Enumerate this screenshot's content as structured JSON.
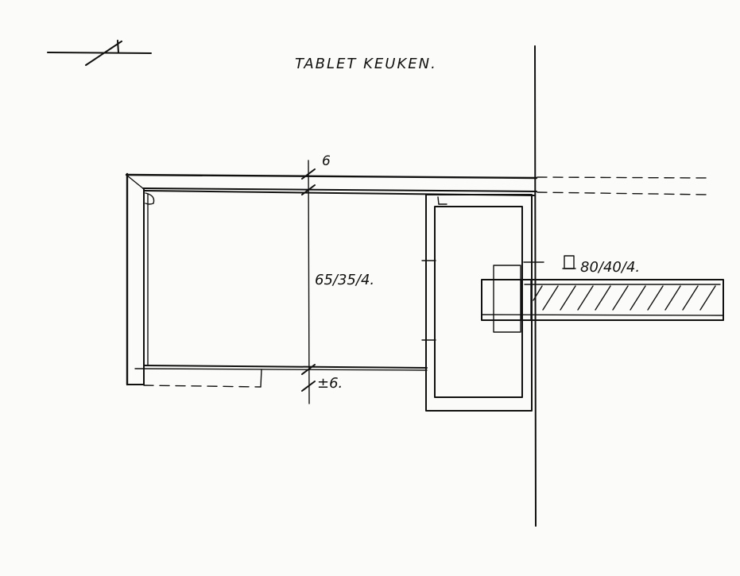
{
  "drawing": {
    "title": "TABLET KEUKEN.",
    "labels": {
      "top_dimension": "6",
      "inner_profile": "65/35/4.",
      "bottom_dimension": "±6.",
      "tube_profile": "80/40/4."
    },
    "ink_color": "#111111",
    "paper_color": "#fbfbf9"
  }
}
